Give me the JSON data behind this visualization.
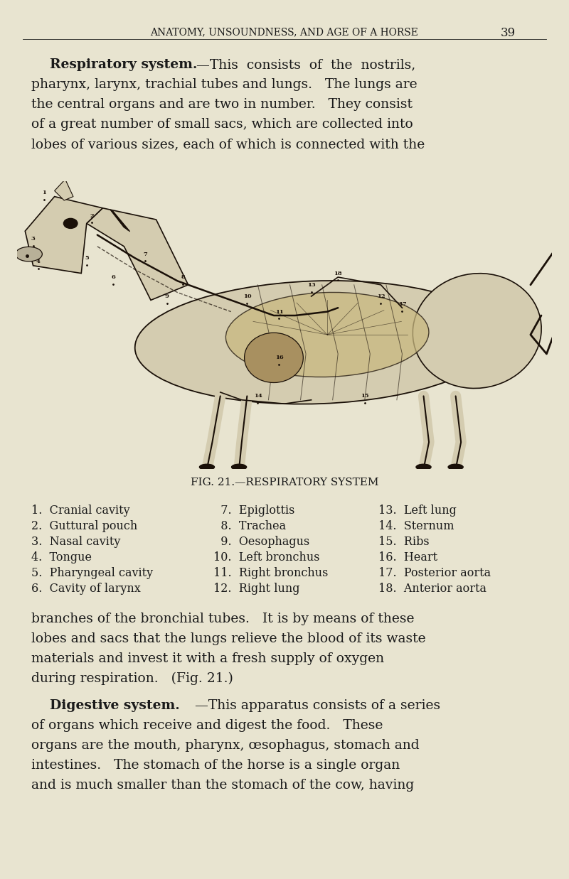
{
  "background_color": "#e8e4d0",
  "page_width": 8.0,
  "page_height": 12.37,
  "dpi": 100,
  "header_text": "ANATOMY, UNSOUNDNESS, AND AGE OF A HORSE",
  "page_number": "39",
  "header_fontsize": 10,
  "para1_lines": [
    "pharynx, larynx, trachial tubes and lungs.   The lungs are",
    "the central organs and are two in number.   They consist",
    "of a great number of small sacs, which are collected into",
    "lobes of various sizes, each of which is connected with the"
  ],
  "fig_caption": "FIG. 21.—RESPIRATORY SYSTEM",
  "legend_col1": [
    "1.  Cranial cavity",
    "2.  Guttural pouch",
    "3.  Nasal cavity",
    "4.  Tongue",
    "5.  Pharyngeal cavity",
    "6.  Cavity of larynx"
  ],
  "legend_col2": [
    "  7.  Epiglottis",
    "  8.  Trachea",
    "  9.  Oesophagus",
    "10.  Left bronchus",
    "11.  Right bronchus",
    "12.  Right lung"
  ],
  "legend_col3": [
    "13.  Left lung",
    "14.  Sternum",
    "15.  Ribs",
    "16.  Heart",
    "17.  Posterior aorta",
    "18.  Anterior aorta"
  ],
  "para2_lines": [
    "branches of the bronchial tubes.   It is by means of these",
    "lobes and sacs that the lungs relieve the blood of its waste",
    "materials and invest it with a fresh supply of oxygen",
    "during respiration.   (Fig. 21.)"
  ],
  "para3_lines": [
    "of organs which receive and digest the food.   These",
    "organs are the mouth, pharynx, œsophagus, stomach and",
    "intestines.   The stomach of the horse is a single organ",
    "and is much smaller than the stomach of the cow, having"
  ],
  "text_color": "#1a1a1a",
  "body_fontsize": 13.5,
  "legend_fontsize": 11.5,
  "caption_fontsize": 11
}
